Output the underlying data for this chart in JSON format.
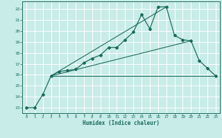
{
  "xlabel": "Humidex (Indice chaleur)",
  "bg_color": "#c8ece8",
  "grid_color": "#ffffff",
  "line_color": "#1a6b5a",
  "xlim": [
    -0.5,
    23.5
  ],
  "ylim": [
    12.5,
    22.7
  ],
  "xticks": [
    0,
    1,
    2,
    3,
    4,
    5,
    6,
    7,
    8,
    9,
    10,
    11,
    12,
    13,
    14,
    15,
    16,
    17,
    18,
    19,
    20,
    21,
    22,
    23
  ],
  "yticks": [
    13,
    14,
    15,
    16,
    17,
    18,
    19,
    20,
    21,
    22
  ],
  "curve1_x": [
    0,
    1,
    2,
    3,
    4,
    5,
    6,
    7,
    8,
    9,
    10,
    11,
    12,
    13,
    14,
    15,
    16,
    17,
    18,
    19,
    20,
    21,
    22,
    23
  ],
  "curve1_y": [
    13.0,
    13.0,
    14.2,
    15.9,
    16.3,
    16.4,
    16.5,
    17.1,
    17.5,
    17.8,
    18.5,
    18.5,
    19.2,
    19.9,
    21.5,
    20.2,
    22.2,
    22.2,
    19.6,
    19.2,
    19.1,
    17.3,
    16.6,
    15.9
  ],
  "line1_x": [
    3,
    23
  ],
  "line1_y": [
    15.9,
    15.9
  ],
  "line2_x": [
    3,
    20
  ],
  "line2_y": [
    15.9,
    19.1
  ],
  "line3_x": [
    3,
    17
  ],
  "line3_y": [
    15.9,
    22.2
  ]
}
